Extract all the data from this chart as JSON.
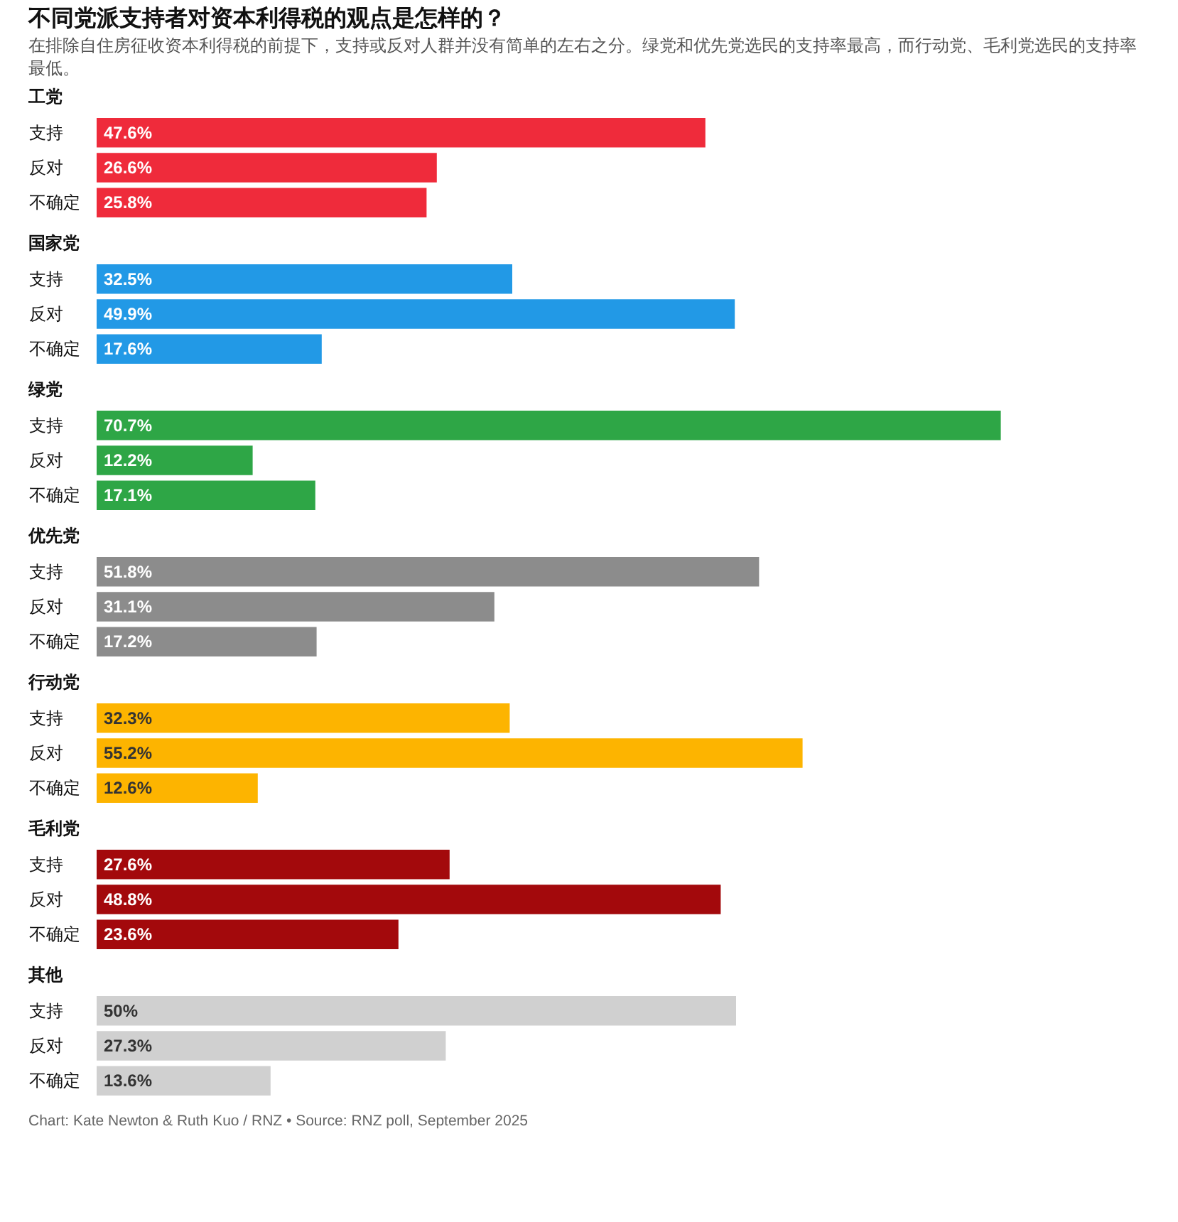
{
  "chart_data": [
    {
      "type": "other",
      "title": "不同党派支持者对资本利得税的观点是怎样的？",
      "subtitle": "在排除自住房征收资本利得税的前提下，支持或反对人群并没有简单的左右之分。绿党和优先党选民的支持率最高，而行动党、毛利党选民的支持率最低。"
    },
    {
      "type": "bar",
      "orientation": "horizontal",
      "title": "工党",
      "categories": [
        "支持",
        "反对",
        "不确定"
      ],
      "values": [
        47.6,
        26.6,
        25.8
      ],
      "value_labels": [
        "47.6%",
        "26.6%",
        "25.8%"
      ],
      "color": "#ef2b3b",
      "tick_labels": "y"
    },
    {
      "type": "bar",
      "orientation": "horizontal",
      "title": "国家党",
      "categories": [
        "支持",
        "反对",
        "不确定"
      ],
      "values": [
        32.5,
        49.9,
        17.6
      ],
      "value_labels": [
        "32.5%",
        "49.9%",
        "17.6%"
      ],
      "color": "#2299e6",
      "tick_labels": "y"
    },
    {
      "type": "bar",
      "orientation": "horizontal",
      "title": "绿党",
      "categories": [
        "支持",
        "反对",
        "不确定"
      ],
      "values": [
        70.7,
        12.2,
        17.1
      ],
      "value_labels": [
        "70.7%",
        "12.2%",
        "17.1%"
      ],
      "color": "#2ea646",
      "tick_labels": "y"
    },
    {
      "type": "bar",
      "orientation": "horizontal",
      "title": "优先党",
      "categories": [
        "支持",
        "反对",
        "不确定"
      ],
      "values": [
        51.8,
        31.1,
        17.2
      ],
      "value_labels": [
        "51.8%",
        "31.1%",
        "17.2%"
      ],
      "color": "#8c8c8c",
      "tick_labels": "y"
    },
    {
      "type": "bar",
      "orientation": "horizontal",
      "title": "行动党",
      "categories": [
        "支持",
        "反对",
        "不确定"
      ],
      "values": [
        32.3,
        55.2,
        12.6
      ],
      "value_labels": [
        "32.3%",
        "55.2%",
        "12.6%"
      ],
      "color": "#fdb400",
      "tick_labels": "y"
    },
    {
      "type": "bar",
      "orientation": "horizontal",
      "title": "毛利党",
      "categories": [
        "支持",
        "反对",
        "不确定"
      ],
      "values": [
        27.6,
        48.8,
        23.6
      ],
      "value_labels": [
        "27.6%",
        "48.8%",
        "23.6%"
      ],
      "color": "#a3090c",
      "tick_labels": "y"
    },
    {
      "type": "bar",
      "orientation": "horizontal",
      "title": "其他",
      "categories": [
        "支持",
        "反对",
        "不确定"
      ],
      "values": [
        50,
        27.3,
        13.6
      ],
      "value_labels": [
        "50%",
        "27.3%",
        "13.6%"
      ],
      "color": "#d0d0d0",
      "tick_labels": "y",
      "annotations": [
        "Chart: Kate Newton & Ruth Kuo / RNZ • Source: RNZ poll, September 2025"
      ]
    }
  ]
}
